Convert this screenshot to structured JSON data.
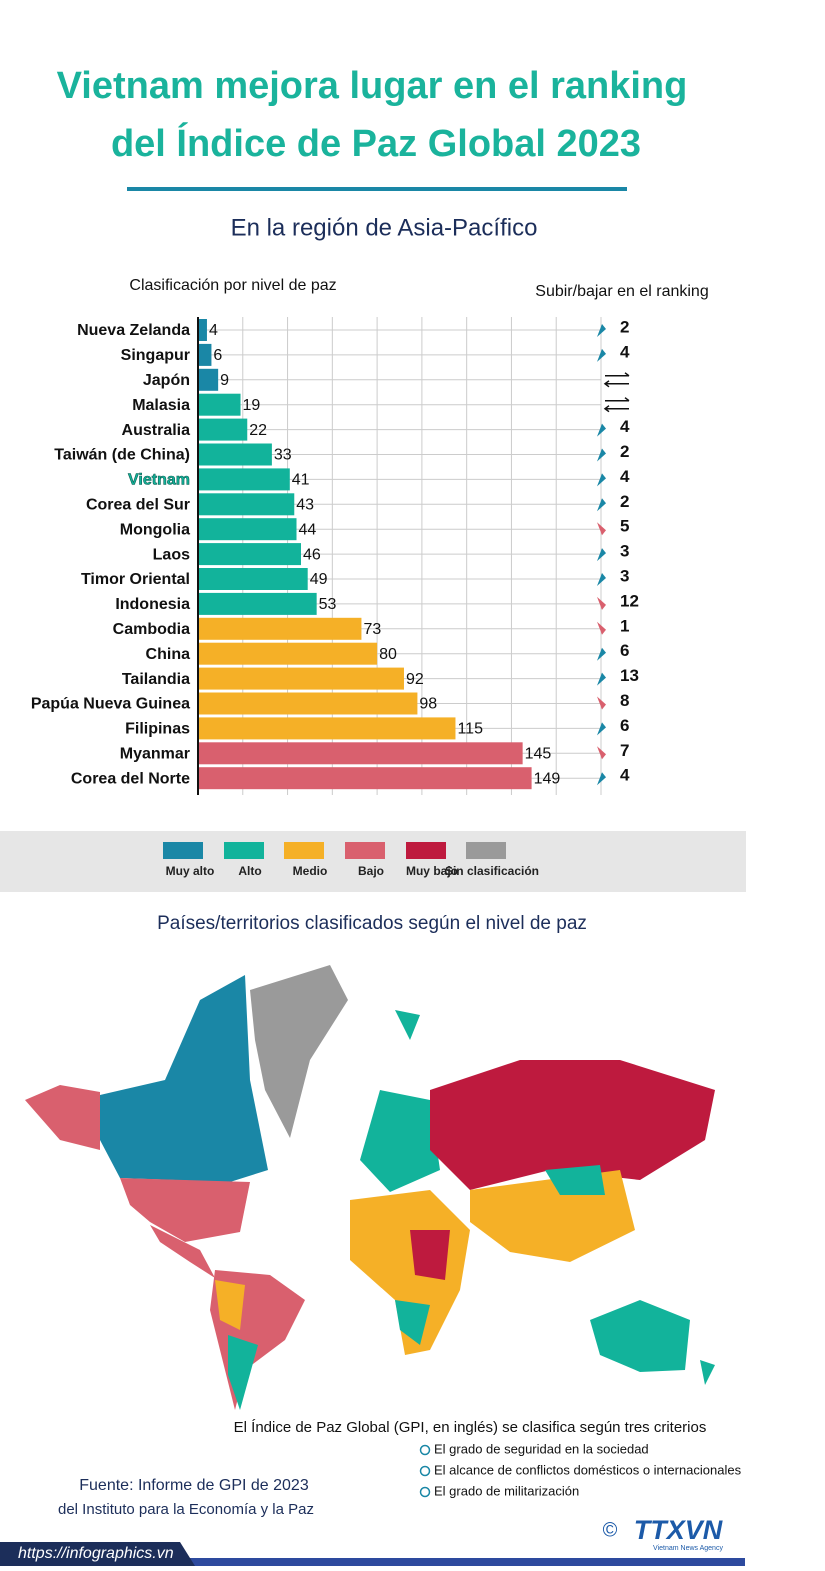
{
  "header": {
    "title_line1": "Vietnam mejora lugar en el ranking",
    "title_line2": "del Índice de Paz Global 2023",
    "subtitle": "En la región de Asia-Pacífico"
  },
  "chart_data": {
    "type": "bar",
    "orientation": "horizontal",
    "x_label": "Clasificación por nivel de paz",
    "categories": [
      "Nueva Zelanda",
      "Singapur",
      "Japón",
      "Malasia",
      "Australia",
      "Taiwán (de China)",
      "Vietnam",
      "Corea del Sur",
      "Mongolia",
      "Laos",
      "Timor Oriental",
      "Indonesia",
      "Cambodia",
      "China",
      "Tailandia",
      "Papúa Nueva Guinea",
      "Filipinas",
      "Myanmar",
      "Corea del Norte"
    ],
    "values": [
      4,
      6,
      9,
      19,
      22,
      33,
      41,
      43,
      44,
      46,
      49,
      53,
      73,
      80,
      92,
      98,
      115,
      145,
      149
    ],
    "colors": [
      "#1a87a6",
      "#1a87a6",
      "#1a87a6",
      "#12b39b",
      "#12b39b",
      "#12b39b",
      "#12b39b",
      "#12b39b",
      "#12b39b",
      "#12b39b",
      "#12b39b",
      "#12b39b",
      "#f5b027",
      "#f5b027",
      "#f5b027",
      "#f5b027",
      "#f5b027",
      "#d9606e",
      "#d9606e"
    ],
    "highlight_index": 6,
    "xlim": [
      0,
      180
    ],
    "xticks": [
      0,
      20,
      40,
      60,
      80,
      100,
      120,
      140,
      160,
      180
    ],
    "grid": true,
    "change_label": "Subir/bajar en el ranking",
    "changes": [
      2,
      4,
      null,
      null,
      4,
      2,
      4,
      2,
      5,
      3,
      3,
      12,
      1,
      6,
      13,
      8,
      6,
      7,
      4
    ],
    "change_directions": [
      "up",
      "up",
      "same",
      "same",
      "up",
      "up",
      "up",
      "up",
      "down",
      "up",
      "up",
      "down",
      "down",
      "up",
      "up",
      "down",
      "up",
      "down",
      "up"
    ],
    "legend": [
      {
        "name": "Muy alto",
        "color": "#1a87a6"
      },
      {
        "name": "Alto",
        "color": "#12b39b"
      },
      {
        "name": "Medio",
        "color": "#f5b027"
      },
      {
        "name": "Bajo",
        "color": "#d9606e"
      },
      {
        "name": "Muy bajo",
        "color": "#be1a3e"
      },
      {
        "name": "Sin clasificación",
        "color": "#9a9a9a"
      }
    ]
  },
  "map": {
    "title": "Países/territorios clasificados según el nivel de paz"
  },
  "criteria": {
    "intro": "El Índice de Paz Global (GPI, en inglés) se clasifica según tres criterios",
    "items": [
      "El grado de seguridad en la sociedad",
      "El alcance de conflictos domésticos o internacionales",
      "El grado de militarización"
    ]
  },
  "source": {
    "line1": "Fuente: Informe de GPI de 2023",
    "line2": "del Instituto para la Economía y la Paz"
  },
  "footer": {
    "url": "https://infographics.vn",
    "copyright": "©",
    "logo": "TTXVN",
    "agency": "Vietnam News Agency"
  }
}
